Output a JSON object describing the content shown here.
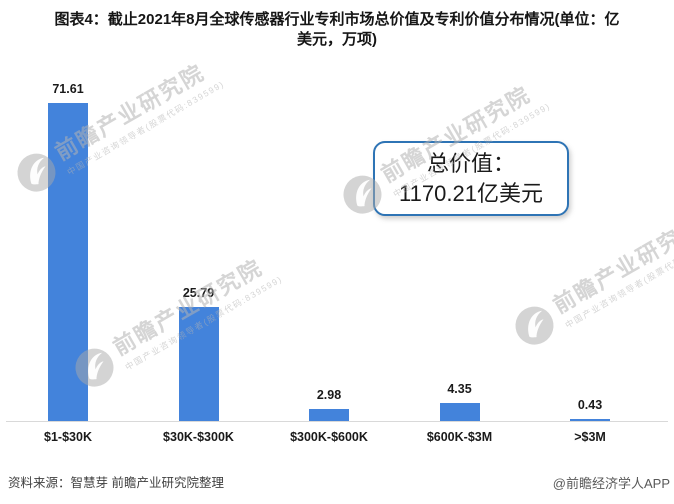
{
  "title": {
    "line1": "图表4：截止2021年8月全球传感器行业专利市场总价值及专利价值分布情况(单位：亿",
    "line2": "美元，万项)"
  },
  "chart_data": {
    "type": "bar",
    "categories": [
      "$1-$30K",
      "$30K-$300K",
      "$300K-$600K",
      "$600K-$3M",
      ">$3M"
    ],
    "values": [
      71.61,
      25.79,
      2.98,
      4.35,
      0.43
    ],
    "value_labels": [
      "71.61",
      "25.79",
      "2.98",
      "4.35",
      "0.43"
    ],
    "bar_color": "#4383db",
    "ylim": [
      0,
      80
    ],
    "grid": false,
    "legend": false,
    "annotation": {
      "line1": "总价值：",
      "line2": "1170.21亿美元"
    }
  },
  "watermark": {
    "text": "前瞻产业研究院",
    "subtext": "中国产业咨询领导者(股票代码:839599)"
  },
  "footer": {
    "source": "资料来源：智慧芽 前瞻产业研究院整理",
    "credit": "@前瞻经济学人APP"
  },
  "colors": {
    "bar": "#4383db",
    "annotation_border": "#2e74b5",
    "axis_line": "#d9d9d9"
  }
}
